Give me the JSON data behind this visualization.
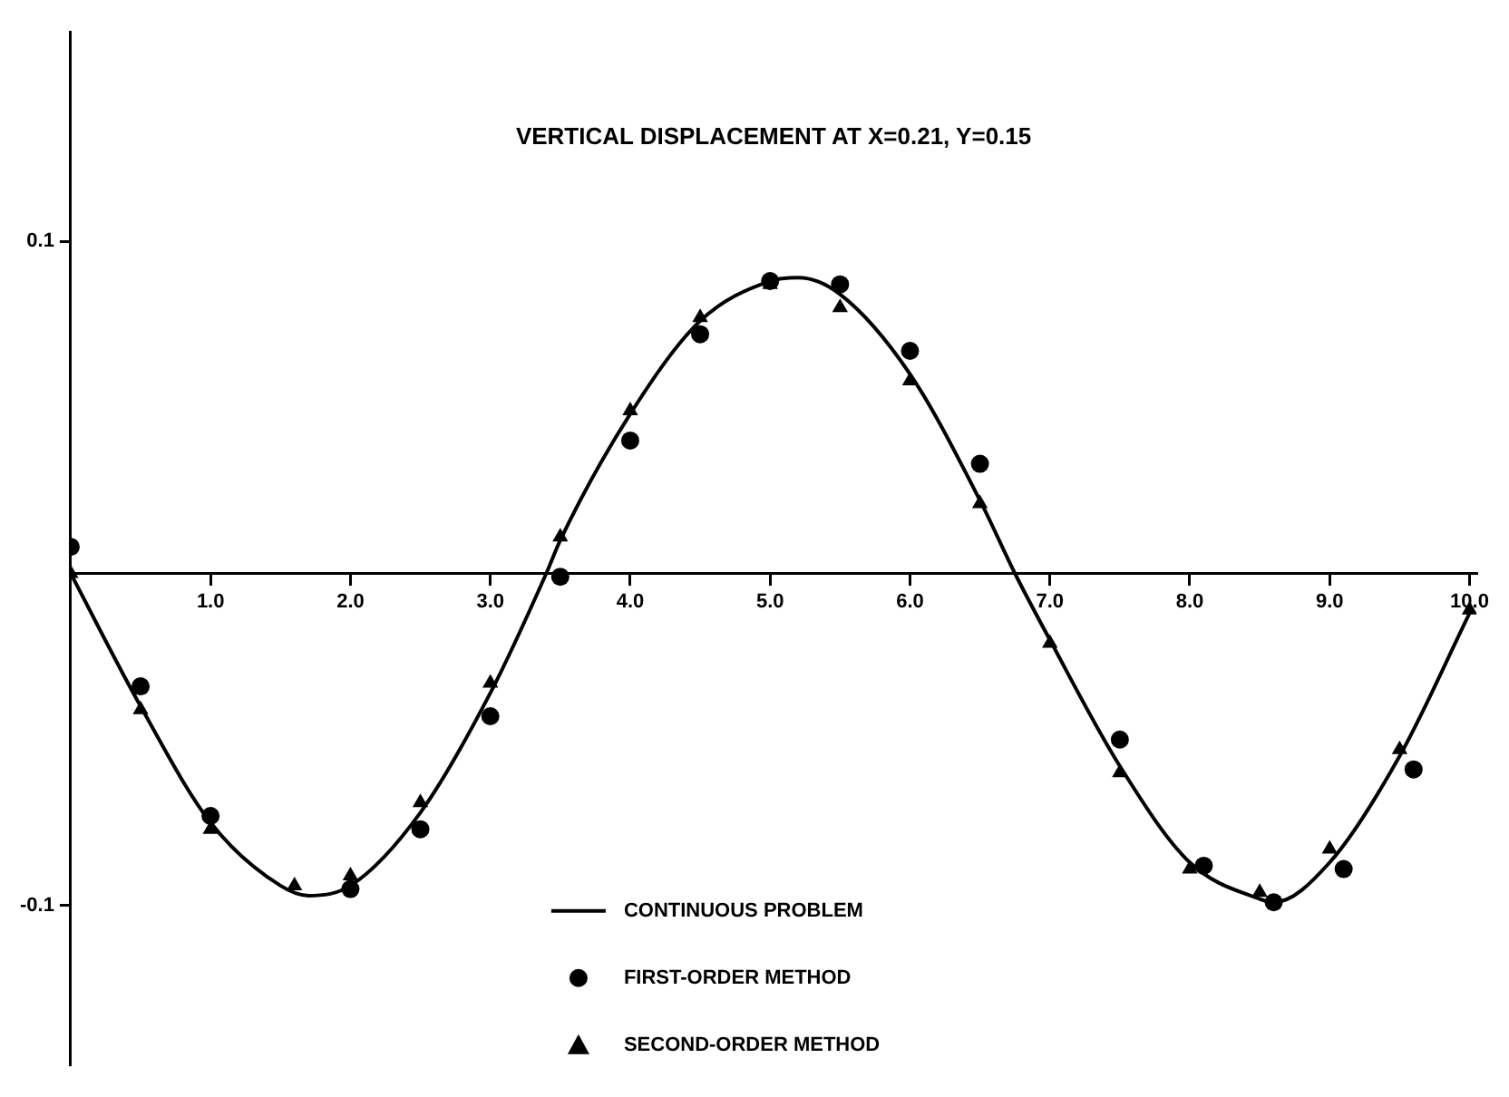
{
  "chart_data": {
    "type": "line",
    "title": "VERTICAL DISPLACEMENT AT X=0.21, Y=0.15",
    "xlim": [
      0,
      10.05
    ],
    "ylim": [
      -0.148,
      0.163
    ],
    "xticks": [
      {
        "value": 1,
        "label": "1.0"
      },
      {
        "value": 2,
        "label": "2.0"
      },
      {
        "value": 3,
        "label": "3.0"
      },
      {
        "value": 4,
        "label": "4.0"
      },
      {
        "value": 5,
        "label": "5.0"
      },
      {
        "value": 6,
        "label": "6.0"
      },
      {
        "value": 7,
        "label": "7.0"
      },
      {
        "value": 8,
        "label": "8.0"
      },
      {
        "value": 9,
        "label": "9.0"
      },
      {
        "value": 10,
        "label": "10.0"
      }
    ],
    "yticks": [
      -0.1,
      0.1
    ],
    "grid": false,
    "legend": "bottom",
    "series": [
      {
        "name": "CONTINUOUS PROBLEM",
        "type": "line",
        "color": "#000000",
        "marker": "none",
        "line_style": "solid",
        "x": [
          0,
          0.5,
          1,
          1.5,
          1.7,
          2,
          2.5,
          3,
          3.4,
          3.5,
          4,
          4.5,
          5,
          5.2,
          5.5,
          6,
          6.5,
          6.75,
          7,
          7.5,
          8,
          8.5,
          8.6,
          9,
          9.5,
          10
        ],
        "values": [
          0,
          -0.04,
          -0.075,
          -0.094,
          -0.097,
          -0.094,
          -0.072,
          -0.036,
          0,
          0.01,
          0.048,
          0.076,
          0.088,
          0.089,
          0.084,
          0.06,
          0.022,
          0,
          -0.02,
          -0.058,
          -0.087,
          -0.098,
          -0.099,
          -0.087,
          -0.055,
          -0.012
        ]
      },
      {
        "name": "FIRST-ORDER METHOD",
        "type": "scatter",
        "color": "#000000",
        "marker": "circle",
        "x": [
          0,
          0.5,
          1,
          2,
          2.5,
          3,
          3.5,
          4,
          4.5,
          5,
          5.5,
          6,
          6.5,
          7.5,
          8.1,
          8.6,
          9.1,
          9.6
        ],
        "values": [
          0.008,
          -0.034,
          -0.073,
          -0.095,
          -0.077,
          -0.043,
          -0.001,
          0.04,
          0.072,
          0.088,
          0.087,
          0.067,
          0.033,
          -0.05,
          -0.088,
          -0.099,
          -0.089,
          -0.059
        ]
      },
      {
        "name": "SECOND-ORDER METHOD",
        "type": "scatter",
        "color": "#000000",
        "marker": "triangle",
        "x": [
          0,
          0.5,
          1,
          1.6,
          2,
          2.5,
          3,
          3.5,
          4,
          4.5,
          5,
          5.5,
          6,
          6.5,
          7,
          7.5,
          8,
          8.5,
          9,
          9.5,
          10
        ],
        "values": [
          0,
          -0.041,
          -0.077,
          -0.094,
          -0.091,
          -0.069,
          -0.033,
          0.011,
          0.049,
          0.077,
          0.087,
          0.08,
          0.058,
          0.021,
          -0.021,
          -0.06,
          -0.089,
          -0.096,
          -0.083,
          -0.053,
          -0.011
        ]
      }
    ]
  }
}
